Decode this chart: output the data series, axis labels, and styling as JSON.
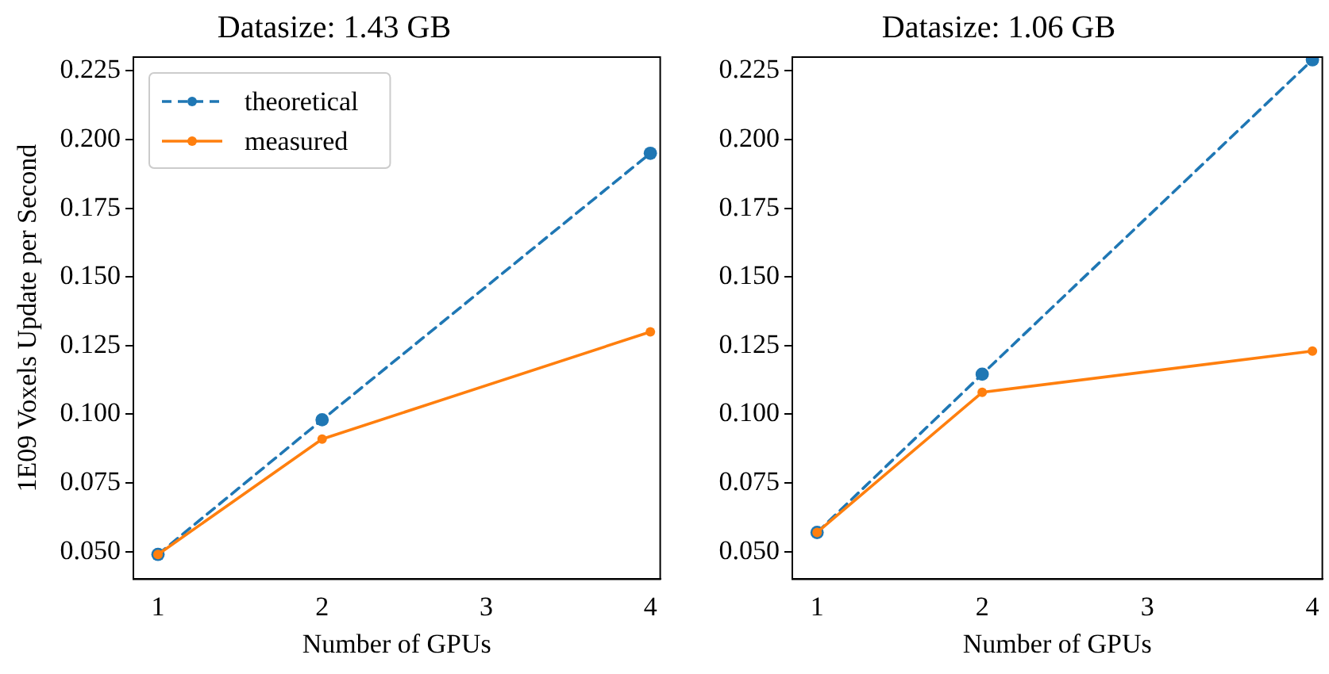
{
  "chart_data": [
    {
      "type": "line",
      "title": "Datasize: 1.43 GB",
      "xlabel": "Number of GPUs",
      "ylabel": "1E09 Voxels Update per Second",
      "x": [
        1,
        2,
        4
      ],
      "xlim": [
        0.85,
        4.06
      ],
      "xticks": [
        1,
        2,
        3,
        4
      ],
      "ylim": [
        0.04,
        0.23
      ],
      "yticks": [
        {
          "value": 0.05,
          "label": "0.050"
        },
        {
          "value": 0.075,
          "label": "0.075"
        },
        {
          "value": 0.1,
          "label": "0.100"
        },
        {
          "value": 0.125,
          "label": "0.125"
        },
        {
          "value": 0.15,
          "label": "0.150"
        },
        {
          "value": 0.175,
          "label": "0.175"
        },
        {
          "value": 0.2,
          "label": "0.200"
        },
        {
          "value": 0.225,
          "label": "0.225"
        }
      ],
      "grid": false,
      "legend": "top left",
      "marker": "circle",
      "series": [
        {
          "name": "theoretical",
          "color": "#1f77b4",
          "line_style": "dashed",
          "values": [
            0.049,
            0.098,
            0.195
          ]
        },
        {
          "name": "measured",
          "color": "#ff7f0e",
          "line_style": "solid",
          "values": [
            0.049,
            0.091,
            0.13
          ]
        }
      ]
    },
    {
      "type": "line",
      "title": "Datasize: 1.06 GB",
      "xlabel": "Number of GPUs",
      "x": [
        1,
        2,
        4
      ],
      "xlim": [
        0.85,
        4.06
      ],
      "xticks": [
        1,
        2,
        3,
        4
      ],
      "ylim": [
        0.04,
        0.23
      ],
      "yticks": [
        {
          "value": 0.05,
          "label": "0.050"
        },
        {
          "value": 0.075,
          "label": "0.075"
        },
        {
          "value": 0.1,
          "label": "0.100"
        },
        {
          "value": 0.125,
          "label": "0.125"
        },
        {
          "value": 0.15,
          "label": "0.150"
        },
        {
          "value": 0.175,
          "label": "0.175"
        },
        {
          "value": 0.2,
          "label": "0.200"
        },
        {
          "value": 0.225,
          "label": "0.225"
        }
      ],
      "grid": false,
      "marker": "circle",
      "series": [
        {
          "color": "#1f77b4",
          "line_style": "dashed",
          "values": [
            0.057,
            0.1146,
            0.229
          ]
        },
        {
          "color": "#ff7f0e",
          "line_style": "solid",
          "values": [
            0.057,
            0.108,
            0.123
          ]
        }
      ]
    }
  ]
}
